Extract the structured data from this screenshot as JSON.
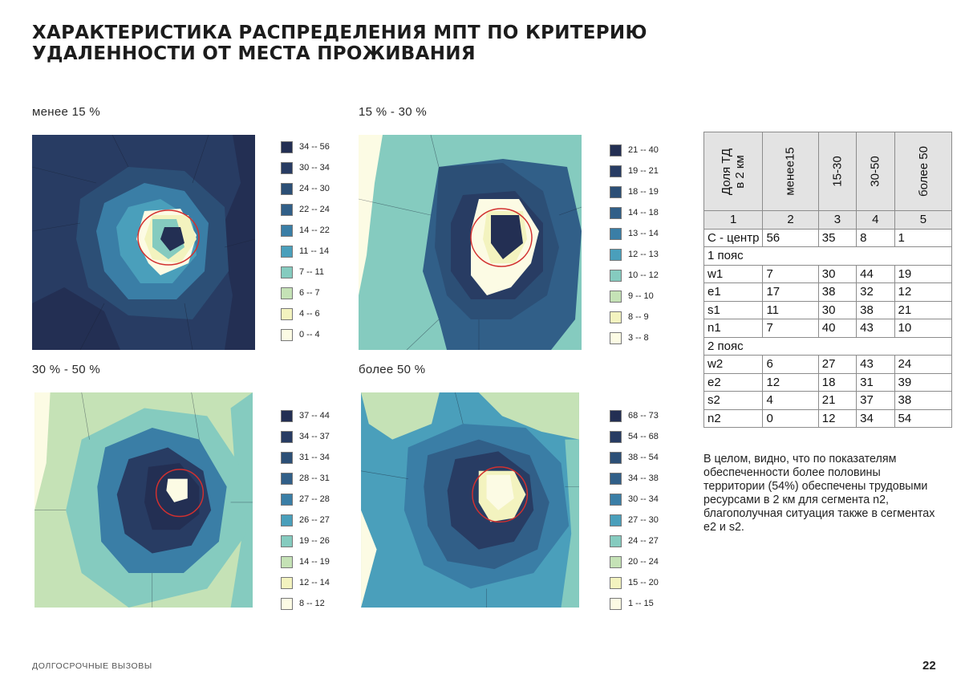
{
  "title": "ХАРАКТЕРИСТИКА РАСПРЕДЕЛЕНИЯ МПТ ПО КРИТЕРИЮ УДАЛЕННОСТИ ОТ МЕСТА ПРОЖИВАНИЯ",
  "maps": [
    {
      "label": "менее 15 %",
      "legend": [
        "34 -- 56",
        "30 -- 34",
        "24 -- 30",
        "22 -- 24",
        "14 -- 22",
        "11 -- 14",
        "7 -- 11",
        "6 -- 7",
        "4 -- 6",
        "0 -- 4"
      ]
    },
    {
      "label": "15 % - 30 %",
      "legend": [
        "21 -- 40",
        "19 -- 21",
        "18 -- 19",
        "14 -- 18",
        "13 -- 14",
        "12 -- 13",
        "10 -- 12",
        "9 -- 10",
        "8 -- 9",
        "3 -- 8"
      ]
    },
    {
      "label": "30 % - 50 %",
      "legend": [
        "37 -- 44",
        "34 -- 37",
        "31 -- 34",
        "28 -- 31",
        "27 -- 28",
        "26 -- 27",
        "19 -- 26",
        "14 -- 19",
        "12 -- 14",
        "8 -- 12"
      ]
    },
    {
      "label": "более 50 %",
      "legend": [
        "68 -- 73",
        "54 -- 68",
        "38 -- 54",
        "34 -- 38",
        "30 -- 34",
        "27 -- 30",
        "24 -- 27",
        "20 -- 24",
        "15 -- 20",
        "1 -- 15"
      ]
    }
  ],
  "palette": [
    "#232f53",
    "#283c63",
    "#2c4f76",
    "#315f88",
    "#3a7ea6",
    "#4a9fbb",
    "#85cbbf",
    "#c5e2b6",
    "#f3f3bf",
    "#fcfbe4"
  ],
  "table": {
    "header": {
      "c1": "Доля ТД в 2 км",
      "c2": "менее15",
      "c3": "15-30",
      "c4": "30-50",
      "c5": "более 50"
    },
    "numbers": [
      "1",
      "2",
      "3",
      "4",
      "5"
    ],
    "rows": [
      {
        "name": "С - центр",
        "v": [
          "56",
          "35",
          "8",
          "1"
        ]
      },
      {
        "belt": "1 пояс"
      },
      {
        "name": "w1",
        "v": [
          "7",
          "30",
          "44",
          "19"
        ]
      },
      {
        "name": "e1",
        "v": [
          "17",
          "38",
          "32",
          "12"
        ]
      },
      {
        "name": "s1",
        "v": [
          "11",
          "30",
          "38",
          "21"
        ]
      },
      {
        "name": "n1",
        "v": [
          "7",
          "40",
          "43",
          "10"
        ]
      },
      {
        "belt": "2 пояс"
      },
      {
        "name": "w2",
        "v": [
          "6",
          "27",
          "43",
          "24"
        ]
      },
      {
        "name": "e2",
        "v": [
          "12",
          "18",
          "31",
          "39"
        ]
      },
      {
        "name": "s2",
        "v": [
          "4",
          "21",
          "37",
          "38"
        ]
      },
      {
        "name": "n2",
        "v": [
          "0",
          "12",
          "34",
          "54"
        ]
      }
    ]
  },
  "note": "В целом, видно, что по показателям обеспеченности более половины территории (54%) обеспечены трудовыми ресурсами в 2 км для сегмента n2, благополучная ситуация также в сегментах e2 и s2.",
  "footer": "ДОЛГОСРОЧНЫЕ ВЫЗОВЫ",
  "page_number": "22"
}
